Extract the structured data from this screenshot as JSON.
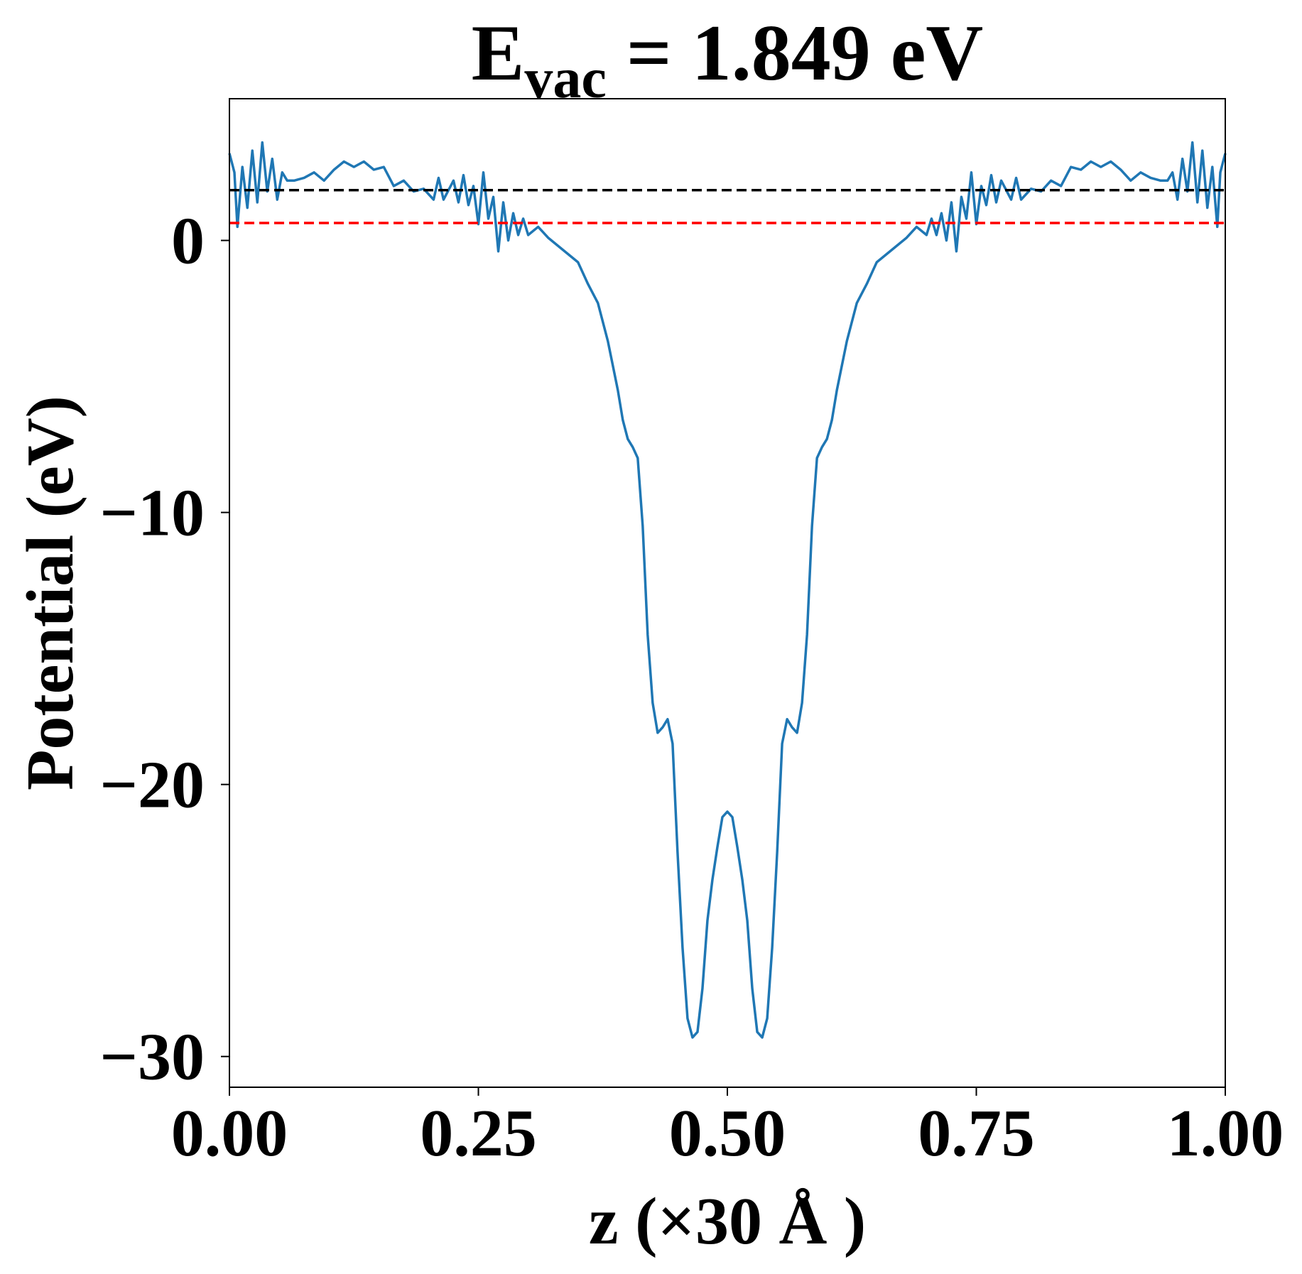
{
  "chart_data": {
    "type": "line",
    "title": "E",
    "title_subscript": "vac",
    "title_rest": " = 1.849 eV",
    "xlabel": "z (×30 Å )",
    "ylabel": "Potential (eV)",
    "x": [
      0,
      0.005,
      0.008,
      0.013,
      0.018,
      0.023,
      0.028,
      0.033,
      0.038,
      0.043,
      0.048,
      0.053,
      0.058,
      0.065,
      0.075,
      0.085,
      0.095,
      0.105,
      0.115,
      0.125,
      0.135,
      0.145,
      0.155,
      0.165,
      0.175,
      0.185,
      0.195,
      0.205,
      0.21,
      0.215,
      0.225,
      0.23,
      0.235,
      0.24,
      0.245,
      0.25,
      0.255,
      0.26,
      0.265,
      0.27,
      0.275,
      0.28,
      0.285,
      0.29,
      0.295,
      0.3,
      0.31,
      0.32,
      0.33,
      0.34,
      0.35,
      0.36,
      0.37,
      0.38,
      0.39,
      0.395,
      0.4,
      0.405,
      0.41,
      0.415,
      0.42,
      0.425,
      0.43,
      0.435,
      0.44,
      0.445,
      0.45,
      0.455,
      0.46,
      0.465,
      0.47,
      0.475,
      0.48,
      0.485,
      0.49,
      0.495,
      0.5,
      0.505,
      0.51,
      0.515,
      0.52,
      0.525,
      0.53,
      0.535,
      0.54,
      0.545,
      0.55,
      0.555,
      0.56,
      0.565,
      0.57,
      0.575,
      0.58,
      0.585,
      0.59,
      0.595,
      0.6,
      0.605,
      0.61,
      0.62,
      0.63,
      0.64,
      0.65,
      0.66,
      0.67,
      0.68,
      0.69,
      0.7,
      0.705,
      0.71,
      0.715,
      0.72,
      0.725,
      0.73,
      0.735,
      0.74,
      0.745,
      0.75,
      0.755,
      0.76,
      0.765,
      0.77,
      0.775,
      0.785,
      0.79,
      0.795,
      0.805,
      0.815,
      0.825,
      0.835,
      0.845,
      0.855,
      0.865,
      0.875,
      0.885,
      0.895,
      0.905,
      0.915,
      0.925,
      0.935,
      0.942,
      0.947,
      0.952,
      0.957,
      0.962,
      0.967,
      0.972,
      0.977,
      0.982,
      0.987,
      0.992,
      0.995,
      1.0
    ],
    "series": [
      {
        "color": "#1f77b4",
        "values": [
          3.2,
          2.5,
          0.5,
          2.7,
          1.2,
          3.3,
          1.4,
          3.6,
          1.8,
          3.0,
          1.5,
          2.5,
          2.2,
          2.2,
          2.3,
          2.5,
          2.2,
          2.6,
          2.9,
          2.7,
          2.9,
          2.6,
          2.7,
          2.0,
          2.2,
          1.8,
          1.9,
          1.5,
          2.3,
          1.5,
          2.2,
          1.4,
          2.4,
          1.3,
          2.0,
          0.6,
          2.5,
          0.8,
          1.6,
          -0.4,
          1.4,
          0.0,
          1.0,
          0.2,
          0.8,
          0.2,
          0.5,
          0.1,
          -0.2,
          -0.5,
          -0.8,
          -1.6,
          -2.3,
          -3.7,
          -5.5,
          -6.6,
          -7.3,
          -7.6,
          -8.0,
          -10.5,
          -14.5,
          -17.0,
          -18.1,
          -17.9,
          -17.6,
          -18.5,
          -22.5,
          -26.0,
          -28.6,
          -29.3,
          -29.1,
          -27.5,
          -25.0,
          -23.5,
          -22.3,
          -21.2,
          -21.0,
          -21.2,
          -22.3,
          -23.5,
          -25.0,
          -27.5,
          -29.1,
          -29.3,
          -28.6,
          -26.0,
          -22.5,
          -18.5,
          -17.6,
          -17.9,
          -18.1,
          -17.0,
          -14.5,
          -10.5,
          -8.0,
          -7.6,
          -7.3,
          -6.6,
          -5.5,
          -3.7,
          -2.3,
          -1.6,
          -0.8,
          -0.5,
          -0.2,
          0.1,
          0.5,
          0.2,
          0.8,
          0.2,
          1.0,
          0.0,
          1.4,
          -0.4,
          1.6,
          0.8,
          2.5,
          0.6,
          2.0,
          1.3,
          2.4,
          1.4,
          2.2,
          1.5,
          2.3,
          1.5,
          1.9,
          1.8,
          2.2,
          2.0,
          2.7,
          2.6,
          2.9,
          2.7,
          2.9,
          2.6,
          2.2,
          2.5,
          2.3,
          2.2,
          2.2,
          2.5,
          1.5,
          3.0,
          1.8,
          3.6,
          1.4,
          3.3,
          1.2,
          2.7,
          0.5,
          2.5,
          3.2
        ]
      }
    ],
    "hlines": [
      {
        "value": 1.849,
        "color": "#000000"
      },
      {
        "value": 0.64,
        "color": "#ff0000"
      }
    ],
    "xlim": [
      0,
      1
    ],
    "ylim": [
      -31.13,
      5.21
    ],
    "xticks": [
      {
        "value": 0,
        "label": "0.00"
      },
      {
        "value": 0.25,
        "label": "0.25"
      },
      {
        "value": 0.5,
        "label": "0.50"
      },
      {
        "value": 0.75,
        "label": "0.75"
      },
      {
        "value": 1,
        "label": "1.00"
      }
    ],
    "yticks": [
      {
        "value": -30,
        "label": "−30"
      },
      {
        "value": -20,
        "label": "−20"
      },
      {
        "value": -10,
        "label": "−10"
      },
      0
    ]
  }
}
